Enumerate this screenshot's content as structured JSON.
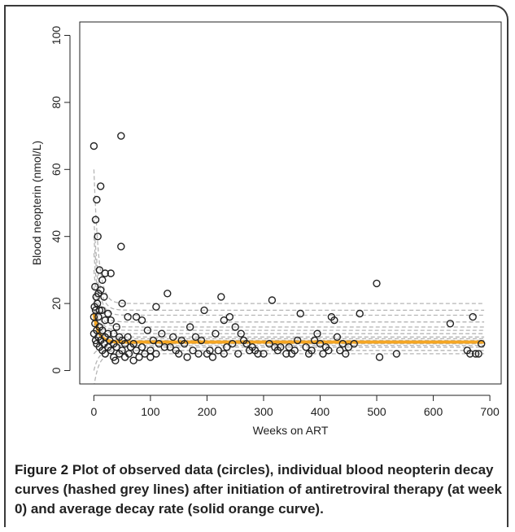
{
  "figure": {
    "label": "Figure 2",
    "caption": "Plot of observed data (circles), individual blood neopterin decay curves (hashed grey lines) after initiation of antiretroviral therapy (at week 0) and average decay rate (solid orange curve)."
  },
  "colors": {
    "points": "#222222",
    "individual_curves": "#b5b5b5",
    "average_curve": "#f5a623",
    "axes": "#222222"
  },
  "chart_data": {
    "type": "scatter",
    "xlabel": "Weeks on ART",
    "ylabel": "Blood neopterin (nmol/L)",
    "xlim": [
      -25,
      720
    ],
    "ylim": [
      -4,
      104
    ],
    "xticks": [
      0,
      100,
      200,
      300,
      400,
      500,
      600,
      700
    ],
    "yticks": [
      0,
      20,
      40,
      60,
      80,
      100
    ],
    "grid": false,
    "average_curve": {
      "baseline": 8.5,
      "initial": 17,
      "decay_rate_per_week": 0.12
    },
    "individual_curves": [
      {
        "baseline": 20,
        "initial": 60
      },
      {
        "baseline": 18,
        "initial": 45
      },
      {
        "baseline": 16.5,
        "initial": 40
      },
      {
        "baseline": 14.5,
        "initial": 35
      },
      {
        "baseline": 13,
        "initial": 30
      },
      {
        "baseline": 12,
        "initial": 25
      },
      {
        "baseline": 11,
        "initial": 22
      },
      {
        "baseline": 10,
        "initial": 20
      },
      {
        "baseline": 9.5,
        "initial": 18
      },
      {
        "baseline": 9,
        "initial": 16
      },
      {
        "baseline": 8.5,
        "initial": 14
      },
      {
        "baseline": 8,
        "initial": 12
      },
      {
        "baseline": 7.5,
        "initial": 10
      },
      {
        "baseline": 7,
        "initial": 5
      },
      {
        "baseline": 6,
        "initial": 0
      },
      {
        "baseline": 5,
        "initial": -5
      }
    ],
    "points": [
      [
        0,
        67
      ],
      [
        48,
        70
      ],
      [
        12,
        55
      ],
      [
        5,
        51
      ],
      [
        3,
        45
      ],
      [
        7,
        40
      ],
      [
        48,
        37
      ],
      [
        10,
        30
      ],
      [
        20,
        29
      ],
      [
        30,
        29
      ],
      [
        15,
        27
      ],
      [
        2,
        25
      ],
      [
        12,
        24
      ],
      [
        8,
        23
      ],
      [
        4,
        22
      ],
      [
        18,
        22
      ],
      [
        6,
        20
      ],
      [
        50,
        20
      ],
      [
        1,
        19
      ],
      [
        10,
        18
      ],
      [
        3,
        18
      ],
      [
        14,
        18
      ],
      [
        25,
        17
      ],
      [
        0,
        16
      ],
      [
        8,
        16
      ],
      [
        20,
        15
      ],
      [
        30,
        15
      ],
      [
        60,
        16
      ],
      [
        2,
        14
      ],
      [
        10,
        13
      ],
      [
        40,
        13
      ],
      [
        5,
        12
      ],
      [
        15,
        12
      ],
      [
        25,
        11
      ],
      [
        35,
        11
      ],
      [
        0,
        11
      ],
      [
        8,
        10
      ],
      [
        20,
        10
      ],
      [
        45,
        10
      ],
      [
        60,
        10
      ],
      [
        3,
        9
      ],
      [
        12,
        9
      ],
      [
        28,
        9
      ],
      [
        50,
        9
      ],
      [
        5,
        8
      ],
      [
        18,
        8
      ],
      [
        35,
        8
      ],
      [
        55,
        8
      ],
      [
        70,
        8
      ],
      [
        10,
        7
      ],
      [
        25,
        7
      ],
      [
        40,
        7
      ],
      [
        65,
        7
      ],
      [
        85,
        7
      ],
      [
        15,
        6
      ],
      [
        30,
        6
      ],
      [
        50,
        6
      ],
      [
        75,
        6
      ],
      [
        20,
        5
      ],
      [
        45,
        5
      ],
      [
        62,
        5
      ],
      [
        90,
        5
      ],
      [
        35,
        4
      ],
      [
        55,
        4
      ],
      [
        80,
        4
      ],
      [
        38,
        3
      ],
      [
        70,
        3
      ],
      [
        100,
        4
      ],
      [
        75,
        16
      ],
      [
        85,
        15
      ],
      [
        110,
        19
      ],
      [
        130,
        23
      ],
      [
        95,
        12
      ],
      [
        120,
        11
      ],
      [
        140,
        10
      ],
      [
        155,
        9
      ],
      [
        170,
        13
      ],
      [
        180,
        10
      ],
      [
        190,
        9
      ],
      [
        105,
        9
      ],
      [
        115,
        8
      ],
      [
        125,
        7
      ],
      [
        135,
        7
      ],
      [
        145,
        6
      ],
      [
        160,
        8
      ],
      [
        175,
        6
      ],
      [
        195,
        18
      ],
      [
        205,
        6
      ],
      [
        215,
        11
      ],
      [
        225,
        22
      ],
      [
        230,
        15
      ],
      [
        240,
        16
      ],
      [
        250,
        13
      ],
      [
        260,
        11
      ],
      [
        265,
        9
      ],
      [
        270,
        8
      ],
      [
        280,
        7
      ],
      [
        200,
        5
      ],
      [
        210,
        4
      ],
      [
        220,
        6
      ],
      [
        235,
        7
      ],
      [
        245,
        8
      ],
      [
        255,
        5
      ],
      [
        285,
        6
      ],
      [
        290,
        5
      ],
      [
        300,
        5
      ],
      [
        310,
        8
      ],
      [
        315,
        21
      ],
      [
        320,
        7
      ],
      [
        325,
        6
      ],
      [
        330,
        7
      ],
      [
        340,
        5
      ],
      [
        350,
        5
      ],
      [
        365,
        17
      ],
      [
        375,
        7
      ],
      [
        385,
        6
      ],
      [
        395,
        11
      ],
      [
        400,
        8
      ],
      [
        410,
        7
      ],
      [
        420,
        16
      ],
      [
        425,
        15
      ],
      [
        430,
        10
      ],
      [
        440,
        8
      ],
      [
        450,
        7
      ],
      [
        470,
        17
      ],
      [
        360,
        9
      ],
      [
        380,
        5
      ],
      [
        405,
        5
      ],
      [
        415,
        6
      ],
      [
        445,
        5
      ],
      [
        460,
        8
      ],
      [
        500,
        26
      ],
      [
        505,
        4
      ],
      [
        535,
        5
      ],
      [
        630,
        14
      ],
      [
        660,
        6
      ],
      [
        665,
        5
      ],
      [
        670,
        16
      ],
      [
        675,
        5
      ],
      [
        680,
        5
      ],
      [
        685,
        8
      ],
      [
        100,
        6
      ],
      [
        110,
        5
      ],
      [
        150,
        5
      ],
      [
        165,
        4
      ],
      [
        185,
        5
      ],
      [
        230,
        5
      ],
      [
        275,
        6
      ],
      [
        345,
        7
      ],
      [
        355,
        6
      ],
      [
        390,
        9
      ],
      [
        435,
        6
      ]
    ]
  }
}
